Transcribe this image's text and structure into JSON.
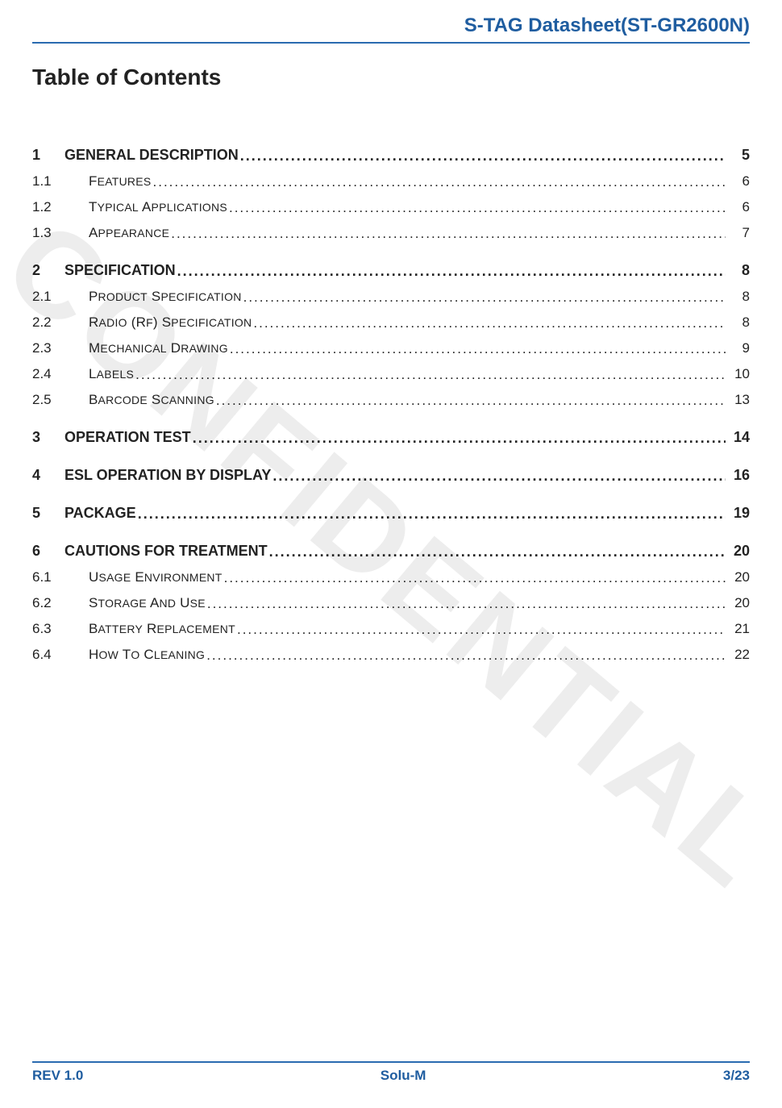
{
  "colors": {
    "header_text": "#1f5da0",
    "header_rule": "#2a6bb0",
    "footer_text": "#1f5da0",
    "footer_rule": "#2a6bb0",
    "body_text": "#222222",
    "background": "#ffffff",
    "watermark": "rgba(0,0,0,0.07)"
  },
  "typography": {
    "header_fontsize_pt": 18,
    "title_fontsize_pt": 21,
    "toc_level1_fontsize_pt": 13.5,
    "toc_level2_fontsize_pt": 12.5,
    "footer_fontsize_pt": 12.5,
    "font_family": "Verdana"
  },
  "watermark": {
    "text": "CONFIDENTIAL"
  },
  "header": {
    "title": "S-TAG Datasheet(ST-GR2600N)"
  },
  "title": "Table of Contents",
  "toc": [
    {
      "level": 1,
      "num": "1",
      "label": "GENERAL DESCRIPTION",
      "page": "5"
    },
    {
      "level": 2,
      "num": "1.1",
      "label": "Features",
      "page": "6"
    },
    {
      "level": 2,
      "num": "1.2",
      "label": "Typical Applications",
      "page": "6"
    },
    {
      "level": 2,
      "num": "1.3",
      "label": "Appearance",
      "page": "7"
    },
    {
      "level": 1,
      "num": "2",
      "label": "SPECIFICATION",
      "page": "8"
    },
    {
      "level": 2,
      "num": "2.1",
      "label": "Product Specification",
      "page": "8"
    },
    {
      "level": 2,
      "num": "2.2",
      "label": "Radio (RF) Specification",
      "page": "8"
    },
    {
      "level": 2,
      "num": "2.3",
      "label": "Mechanical Drawing",
      "page": "9"
    },
    {
      "level": 2,
      "num": "2.4",
      "label": "Labels",
      "page": "10"
    },
    {
      "level": 2,
      "num": "2.5",
      "label": "Barcode Scanning",
      "page": "13"
    },
    {
      "level": 1,
      "num": "3",
      "label": "OPERATION TEST",
      "page": "14"
    },
    {
      "level": 1,
      "num": "4",
      "label": "ESL OPERATION BY DISPLAY",
      "page": "16"
    },
    {
      "level": 1,
      "num": "5",
      "label": "PACKAGE",
      "page": "19"
    },
    {
      "level": 1,
      "num": "6",
      "label": "CAUTIONS FOR TREATMENT",
      "page": "20"
    },
    {
      "level": 2,
      "num": "6.1",
      "label": "Usage Environment",
      "page": "20"
    },
    {
      "level": 2,
      "num": "6.2",
      "label": "Storage and Use",
      "page": "20"
    },
    {
      "level": 2,
      "num": "6.3",
      "label": "Battery Replacement",
      "page": "21"
    },
    {
      "level": 2,
      "num": "6.4",
      "label": "How to cleaning",
      "page": "22"
    }
  ],
  "footer": {
    "left": "REV 1.0",
    "center": "Solu-M",
    "right": "3/23"
  }
}
